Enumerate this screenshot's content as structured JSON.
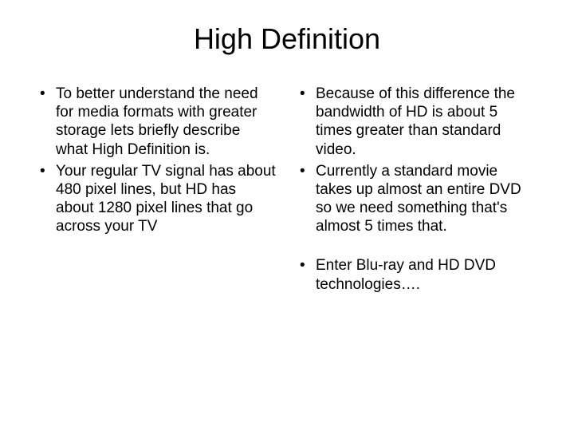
{
  "slide": {
    "title": "High Definition",
    "left_bullets": [
      "To better understand the need for media formats with greater storage lets briefly describe what High Definition is.",
      "Your regular TV signal has about 480 pixel lines, but HD has about 1280 pixel lines that go across your TV"
    ],
    "right_bullets_group1": [
      "Because of this difference the bandwidth of HD is about 5 times greater than standard video.",
      "Currently a standard movie takes up almost an entire DVD so we need something that's almost 5 times that."
    ],
    "right_bullets_group2": [
      "Enter Blu-ray and HD DVD technologies…."
    ]
  },
  "style": {
    "background_color": "#ffffff",
    "text_color": "#000000",
    "title_fontsize": 36,
    "body_fontsize": 19,
    "font_family": "Arial"
  }
}
